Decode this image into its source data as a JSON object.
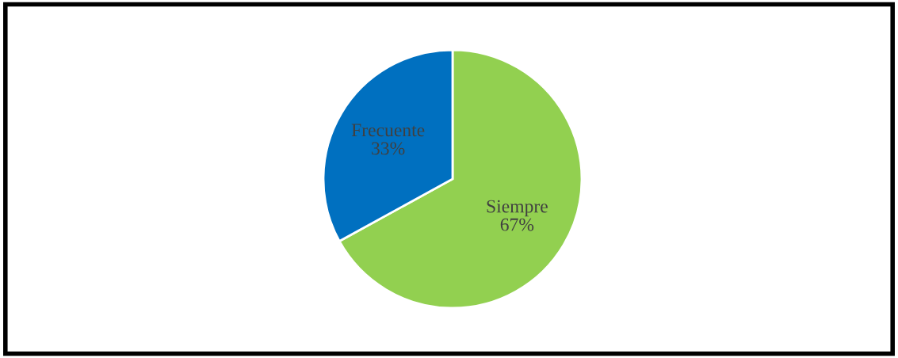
{
  "chart_data": {
    "type": "pie",
    "categories": [
      "Siempre",
      "Frecuente"
    ],
    "values": [
      67,
      33
    ],
    "colors": [
      "#92d050",
      "#0070c0"
    ],
    "value_labels": [
      "67%",
      "33%"
    ],
    "legend": false
  }
}
